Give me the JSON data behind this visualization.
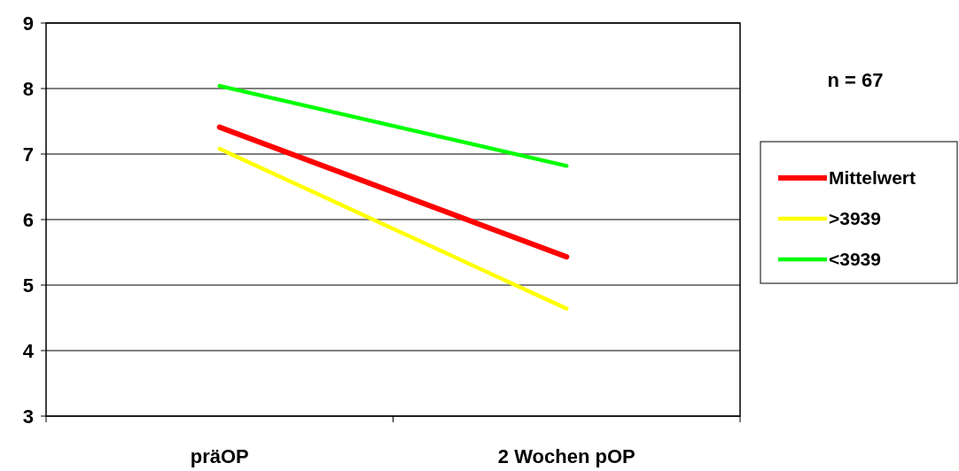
{
  "chart_data": {
    "type": "line",
    "categories": [
      "präOP",
      "2 Wochen pOP"
    ],
    "series": [
      {
        "name": "Mittelwert",
        "color": "#ff0000",
        "values": [
          7.41,
          5.43
        ]
      },
      {
        "name": ">3939",
        "color": "#ffff00",
        "values": [
          7.08,
          4.64
        ]
      },
      {
        "name": "<3939",
        "color": "#00ff00",
        "values": [
          8.04,
          6.82
        ]
      }
    ],
    "ylim": [
      3,
      9
    ],
    "yticks": [
      3,
      4,
      5,
      6,
      7,
      8,
      9
    ],
    "grid": "y",
    "legend": "right",
    "marker": "none",
    "line_style": "solid",
    "annotations": [
      "n = 67"
    ]
  }
}
